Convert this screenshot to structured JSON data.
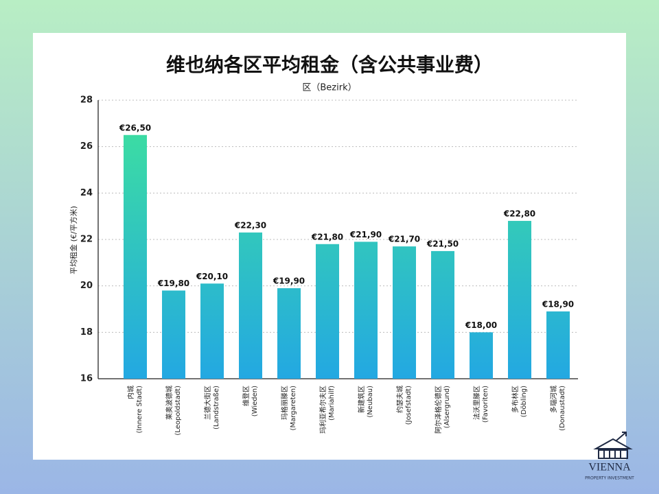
{
  "chart_data": {
    "type": "bar",
    "title": "维也纳各区平均租金（含公共事业费）",
    "subtitle": "区（Bezirk）",
    "y_label": "平均租金 (€/平方米)",
    "categories": [
      "内城",
      "莱奥波德城",
      "兰德大街区",
      "维登区",
      "玛格丽滕区",
      "玛利亚希尔夫区",
      "新建筑区",
      "约瑟夫城",
      "阿尔泽格伦德区",
      "法沃里滕区",
      "多布林区",
      "多瑙河城"
    ],
    "category_subtitles": [
      "(Innere Stadt)",
      "(Leopoldstadt)",
      "(Landstraße)",
      "(Wieden)",
      "(Margareten)",
      "(Mariahilf)",
      "(Neubau)",
      "(Josefstadt)",
      "(Alsergrund)",
      "(Favoriten)",
      "(Döbling)",
      "(Donaustadt)"
    ],
    "values": [
      26.5,
      19.8,
      20.1,
      22.3,
      19.9,
      21.8,
      21.9,
      21.7,
      21.5,
      18.0,
      22.8,
      18.9
    ],
    "value_labels": [
      "€26,50",
      "€19,80",
      "€20,10",
      "€22,30",
      "€19,90",
      "€21,80",
      "€21,90",
      "€21,70",
      "€21,50",
      "€18,00",
      "€22,80",
      "€18,90"
    ],
    "color": [
      "#3fe39b",
      "#23a8e2"
    ],
    "ylim": [
      16,
      28
    ],
    "yticks": [
      16,
      18,
      20,
      22,
      24,
      26,
      28
    ],
    "grid": true
  },
  "logo": {
    "name": "VIENNA",
    "tagline": "PROPERTY INVESTMENT"
  }
}
